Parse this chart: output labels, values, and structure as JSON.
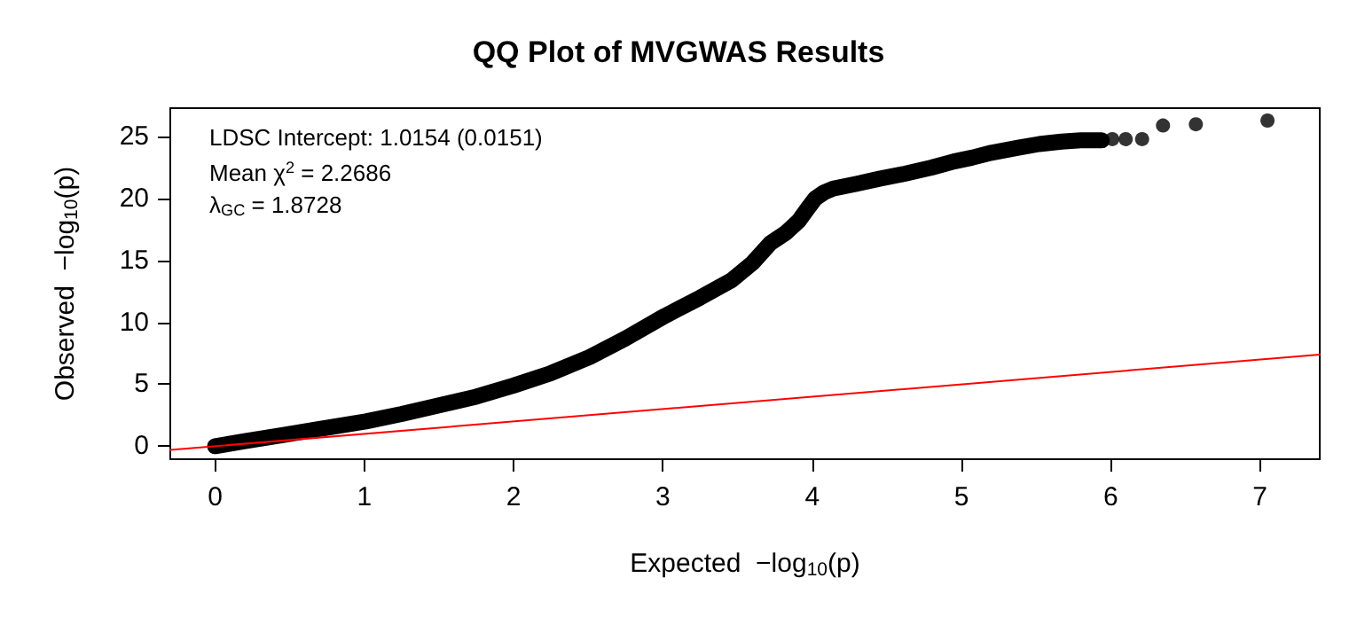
{
  "chart_data": {
    "type": "scatter",
    "title": "QQ Plot of MVGWAS Results",
    "xlabel": "Expected  −log$_{10}$(p)",
    "ylabel": "Observed  −log$_{10}$(p)",
    "annotations": [
      "LDSC Intercept: 1.0154 (0.0151)",
      "Mean χ$^{2}$ = 2.2686",
      "λ$_{GC}$ = 1.8728"
    ],
    "xlim": [
      -0.3,
      7.4
    ],
    "ylim": [
      -1.05,
      27.3
    ],
    "xticks": [
      0,
      1,
      2,
      3,
      4,
      5,
      6,
      7
    ],
    "yticks": [
      0,
      5,
      10,
      15,
      20,
      25
    ],
    "grid": false,
    "series": [
      {
        "type": "line",
        "color": "#000000",
        "marker": "none",
        "x": [
          0,
          0.2,
          0.45,
          0.7,
          1.01,
          1.25,
          1.5,
          1.75,
          2.0,
          2.25,
          2.51,
          2.75,
          3.01,
          3.25,
          3.46,
          3.6,
          3.72,
          3.82,
          3.91,
          3.97,
          4.02,
          4.08,
          4.14,
          4.3,
          4.45,
          4.62,
          4.8,
          4.95,
          5.07,
          5.2,
          5.38,
          5.52,
          5.67,
          5.8,
          5.94
        ],
        "values": [
          0,
          0.4,
          0.9,
          1.4,
          2.0,
          2.6,
          3.3,
          4.0,
          4.9,
          5.9,
          7.2,
          8.7,
          10.5,
          12.0,
          13.4,
          14.8,
          16.4,
          17.2,
          18.2,
          19.2,
          20.0,
          20.5,
          20.8,
          21.2,
          21.6,
          22.0,
          22.5,
          23.0,
          23.3,
          23.7,
          24.1,
          24.4,
          24.6,
          24.7,
          24.7
        ]
      },
      {
        "type": "scatter",
        "color": "#000000",
        "marker": "circle",
        "x": [
          6.01,
          6.1,
          6.21,
          6.35,
          6.57,
          7.05
        ],
        "values": [
          24.8,
          24.8,
          24.8,
          25.9,
          26.0,
          26.3
        ]
      },
      {
        "type": "line",
        "color": "#ff0000",
        "marker": "none",
        "x": [
          -0.3,
          7.4
        ],
        "values": [
          -0.3,
          7.4
        ]
      }
    ]
  }
}
